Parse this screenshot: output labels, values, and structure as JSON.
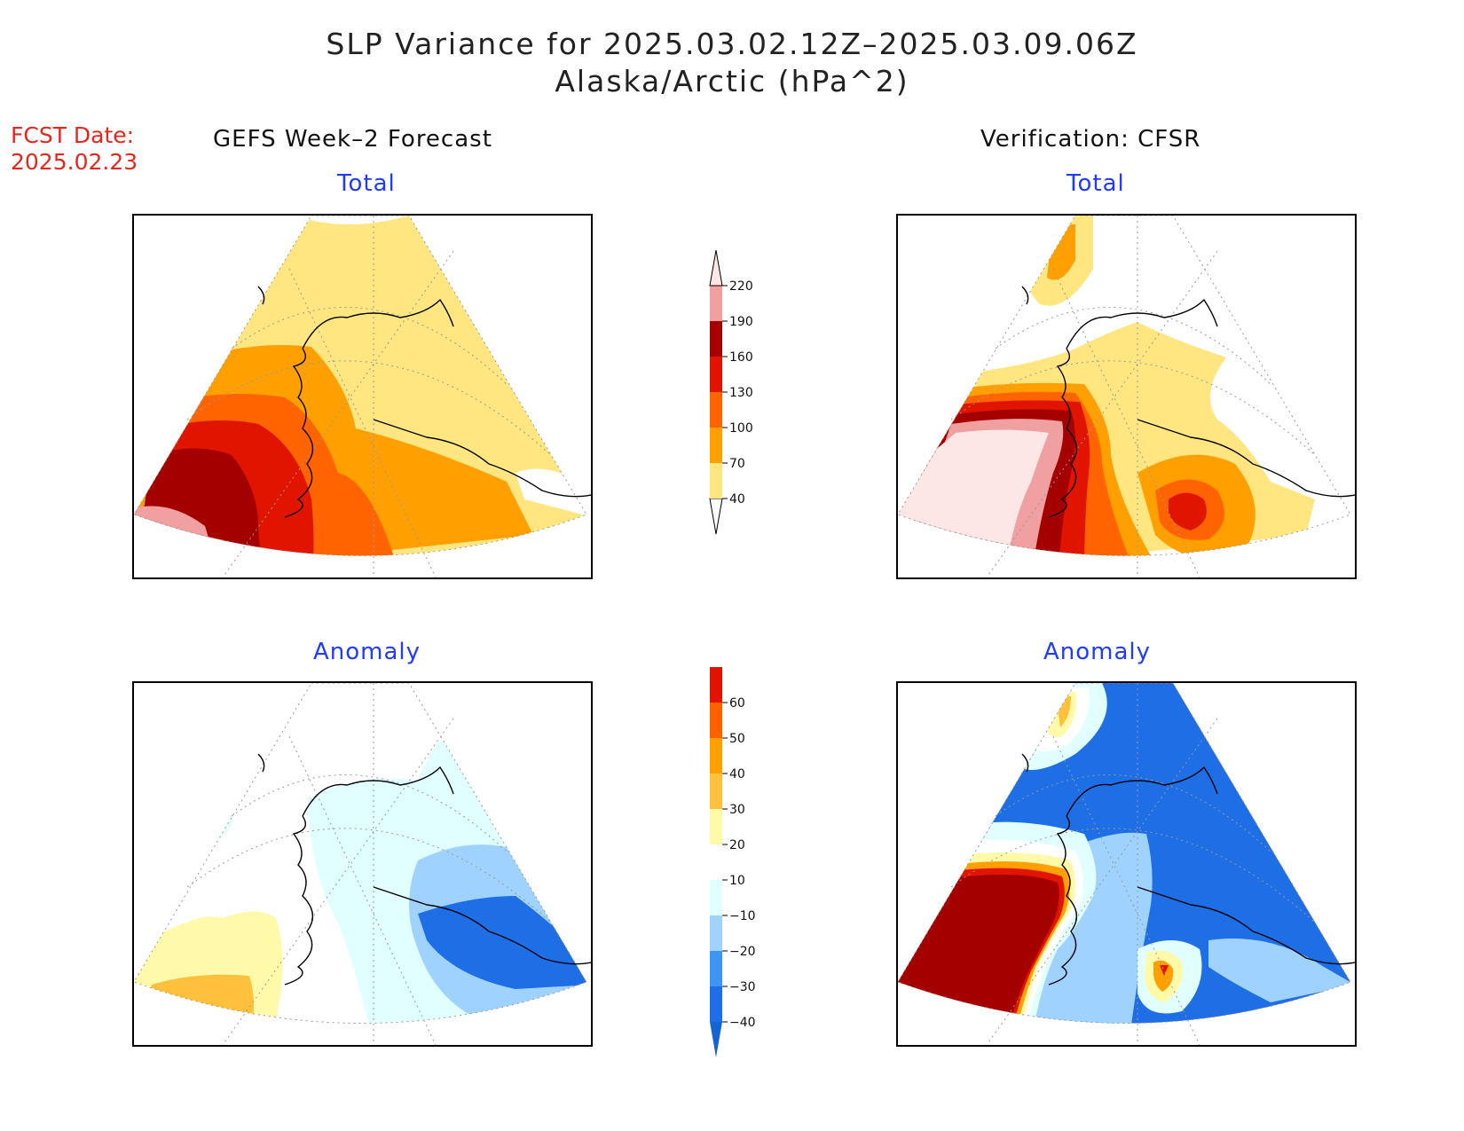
{
  "title": {
    "line1": "SLP Variance for 2025.03.02.12Z–2025.03.09.06Z",
    "line2": "Alaska/Arctic (hPa^2)"
  },
  "fcst_date": {
    "label": "FCST Date:",
    "value": "2025.02.23"
  },
  "columns": {
    "left": "GEFS Week–2 Forecast",
    "right": "Verification: CFSR"
  },
  "panels": {
    "total_label": "Total",
    "anomaly_label": "Anomaly"
  },
  "colorbar_total": {
    "ticks": [
      "40",
      "70",
      "100",
      "130",
      "160",
      "190",
      "220"
    ],
    "colors": [
      "#ffffff",
      "#ffe680",
      "#ffa000",
      "#ff6400",
      "#e11400",
      "#a50000",
      "#f0a0a0",
      "#fde6e6"
    ]
  },
  "colorbar_anomaly": {
    "ticks": [
      "−40",
      "−30",
      "−20",
      "−10",
      "10",
      "20",
      "30",
      "40",
      "50",
      "60"
    ],
    "colors": [
      "#1464d2",
      "#1e6ee6",
      "#3c96f5",
      "#a0d2ff",
      "#e1ffff",
      "#ffffff",
      "#fffaaa",
      "#ffc03c",
      "#ffa000",
      "#ff6000",
      "#e11400",
      "#a50000"
    ]
  }
}
